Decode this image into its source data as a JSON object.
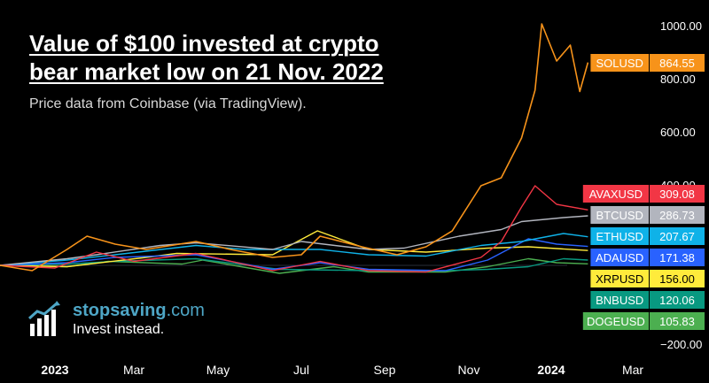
{
  "header": {
    "title_line1": "Value of $100 invested at crypto",
    "title_line2": "bear market low on 21 Nov. 2022",
    "subtitle": "Price data from Coinbase (via TradingView)."
  },
  "logo": {
    "name_bold": "stopsaving",
    "name_suffix": ".com",
    "tagline": "Invest instead.",
    "color": "#4ea6c6"
  },
  "chart_data": {
    "type": "line",
    "title": "Value of $100 invested at crypto bear market low on 21 Nov. 2022",
    "subtitle": "Price data from Coinbase (via TradingView).",
    "xlabel": "",
    "ylabel": "",
    "x_ticks": [
      "2023",
      "Mar",
      "May",
      "Jul",
      "Sep",
      "Nov",
      "2024",
      "Mar"
    ],
    "y_ticks": [
      1000,
      800,
      600,
      400,
      -200
    ],
    "y_tick_labels": [
      "1000.00",
      "800.00",
      "600.00",
      "400.00",
      "−200.00"
    ],
    "ylim": [
      -200,
      1000
    ],
    "grid": false,
    "legend": "right-axis labels",
    "series": [
      {
        "name": "SOLUSD",
        "label_value": "864.55",
        "color": "#f7931a",
        "points": [
          [
            "2022-11-21",
            100
          ],
          [
            "2022-12-15",
            80
          ],
          [
            "2023-01-10",
            160
          ],
          [
            "2023-01-25",
            210
          ],
          [
            "2023-02-15",
            180
          ],
          [
            "2023-03-10",
            160
          ],
          [
            "2023-04-15",
            190
          ],
          [
            "2023-05-10",
            160
          ],
          [
            "2023-06-10",
            130
          ],
          [
            "2023-07-01",
            140
          ],
          [
            "2023-07-15",
            210
          ],
          [
            "2023-08-15",
            170
          ],
          [
            "2023-09-10",
            140
          ],
          [
            "2023-10-01",
            170
          ],
          [
            "2023-10-20",
            230
          ],
          [
            "2023-11-10",
            400
          ],
          [
            "2023-11-25",
            430
          ],
          [
            "2023-12-10",
            580
          ],
          [
            "2023-12-20",
            760
          ],
          [
            "2023-12-25",
            1010
          ],
          [
            "2024-01-05",
            870
          ],
          [
            "2024-01-15",
            930
          ],
          [
            "2024-01-22",
            755
          ],
          [
            "2024-01-28",
            864.55
          ]
        ]
      },
      {
        "name": "AVAXUSD",
        "label_value": "309.08",
        "color": "#f23645",
        "points": [
          [
            "2022-11-21",
            100
          ],
          [
            "2023-01-01",
            90
          ],
          [
            "2023-02-01",
            150
          ],
          [
            "2023-03-01",
            115
          ],
          [
            "2023-04-15",
            145
          ],
          [
            "2023-06-10",
            80
          ],
          [
            "2023-07-15",
            115
          ],
          [
            "2023-08-20",
            80
          ],
          [
            "2023-10-01",
            75
          ],
          [
            "2023-11-10",
            130
          ],
          [
            "2023-11-25",
            190
          ],
          [
            "2023-12-10",
            320
          ],
          [
            "2023-12-20",
            400
          ],
          [
            "2024-01-05",
            330
          ],
          [
            "2024-01-28",
            309.08
          ]
        ]
      },
      {
        "name": "BTCUSD",
        "label_value": "286.73",
        "color": "#b2b5be",
        "points": [
          [
            "2022-11-21",
            100
          ],
          [
            "2023-01-10",
            125
          ],
          [
            "2023-02-01",
            140
          ],
          [
            "2023-03-20",
            175
          ],
          [
            "2023-04-15",
            185
          ],
          [
            "2023-06-10",
            160
          ],
          [
            "2023-07-01",
            190
          ],
          [
            "2023-08-20",
            160
          ],
          [
            "2023-09-15",
            165
          ],
          [
            "2023-10-25",
            210
          ],
          [
            "2023-11-25",
            235
          ],
          [
            "2023-12-10",
            265
          ],
          [
            "2024-01-10",
            280
          ],
          [
            "2024-01-28",
            286.73
          ]
        ]
      },
      {
        "name": "ETHUSD",
        "label_value": "207.67",
        "color": "#0fb2e8",
        "points": [
          [
            "2022-11-21",
            100
          ],
          [
            "2023-01-10",
            120
          ],
          [
            "2023-02-15",
            140
          ],
          [
            "2023-04-15",
            175
          ],
          [
            "2023-05-20",
            160
          ],
          [
            "2023-07-15",
            160
          ],
          [
            "2023-08-20",
            140
          ],
          [
            "2023-10-01",
            135
          ],
          [
            "2023-11-10",
            175
          ],
          [
            "2023-12-10",
            190
          ],
          [
            "2024-01-10",
            220
          ],
          [
            "2024-01-28",
            207.67
          ]
        ]
      },
      {
        "name": "ADAUSD",
        "label_value": "171.38",
        "color": "#2962ff",
        "points": [
          [
            "2022-11-21",
            100
          ],
          [
            "2023-01-10",
            110
          ],
          [
            "2023-02-15",
            130
          ],
          [
            "2023-04-15",
            140
          ],
          [
            "2023-06-10",
            85
          ],
          [
            "2023-07-15",
            110
          ],
          [
            "2023-08-20",
            85
          ],
          [
            "2023-10-15",
            80
          ],
          [
            "2023-11-15",
            120
          ],
          [
            "2023-12-15",
            200
          ],
          [
            "2024-01-05",
            180
          ],
          [
            "2024-01-28",
            171.38
          ]
        ]
      },
      {
        "name": "XRPUSD",
        "label_value": "156.00",
        "color": "#ffeb3b",
        "points": [
          [
            "2022-11-21",
            100
          ],
          [
            "2023-01-10",
            95
          ],
          [
            "2023-03-10",
            130
          ],
          [
            "2023-04-01",
            145
          ],
          [
            "2023-06-10",
            140
          ],
          [
            "2023-07-13",
            230
          ],
          [
            "2023-08-20",
            160
          ],
          [
            "2023-10-01",
            150
          ],
          [
            "2023-11-15",
            165
          ],
          [
            "2023-12-15",
            170
          ],
          [
            "2024-01-28",
            156.0
          ]
        ]
      },
      {
        "name": "BNBUSD",
        "label_value": "120.06",
        "color": "#089981",
        "points": [
          [
            "2022-11-21",
            100
          ],
          [
            "2023-01-10",
            105
          ],
          [
            "2023-02-15",
            115
          ],
          [
            "2023-04-15",
            125
          ],
          [
            "2023-06-15",
            85
          ],
          [
            "2023-08-20",
            80
          ],
          [
            "2023-10-01",
            78
          ],
          [
            "2023-11-15",
            85
          ],
          [
            "2023-12-15",
            95
          ],
          [
            "2024-01-10",
            125
          ],
          [
            "2024-01-28",
            120.06
          ]
        ]
      },
      {
        "name": "DOGEUSD",
        "label_value": "105.83",
        "color": "#4caf50",
        "points": [
          [
            "2022-11-21",
            100
          ],
          [
            "2023-01-10",
            95
          ],
          [
            "2023-02-10",
            115
          ],
          [
            "2023-04-05",
            105
          ],
          [
            "2023-04-20",
            120
          ],
          [
            "2023-06-15",
            70
          ],
          [
            "2023-07-25",
            95
          ],
          [
            "2023-08-20",
            75
          ],
          [
            "2023-10-15",
            75
          ],
          [
            "2023-11-15",
            95
          ],
          [
            "2023-12-15",
            125
          ],
          [
            "2024-01-05",
            110
          ],
          [
            "2024-01-28",
            105.83
          ]
        ]
      }
    ]
  }
}
